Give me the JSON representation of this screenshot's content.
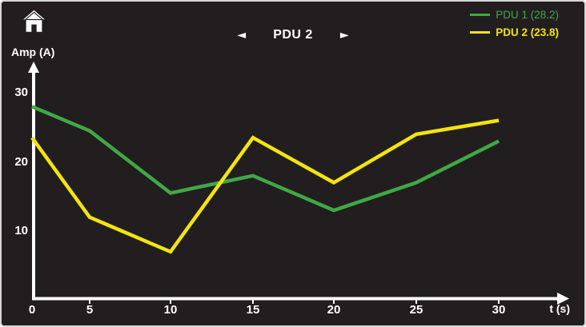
{
  "header": {
    "title": "PDU 2",
    "prev_label": "◄",
    "next_label": "►"
  },
  "axis": {
    "y_label": "Amp (A)",
    "x_label": "t (s)"
  },
  "chart_data": {
    "type": "line",
    "title": "PDU 2",
    "xlabel": "t (s)",
    "ylabel": "Amp (A)",
    "x": [
      0,
      5,
      10,
      15,
      20,
      25,
      30
    ],
    "x_tick_labels": [
      "0",
      "5",
      "10",
      "15",
      "20",
      "25",
      "30"
    ],
    "y_ticks": [
      30,
      20,
      10
    ],
    "y_tick_labels": [
      "30",
      "20",
      "10"
    ],
    "xlim": [
      0,
      33
    ],
    "ylim": [
      0,
      33
    ],
    "grid": false,
    "legend_position": "top-right",
    "background_color": "#221e1f",
    "axis_color": "#ffffff",
    "series": [
      {
        "name": "PDU 1",
        "legend_label": "PDU 1 (28.2)",
        "current_value": 28.2,
        "color": "#3fa845",
        "selected": false,
        "values": [
          28,
          24.5,
          15.5,
          18,
          13,
          17,
          23
        ]
      },
      {
        "name": "PDU 2",
        "legend_label": "PDU 2 (23.8)",
        "current_value": 23.8,
        "color": "#f2e410",
        "selected": true,
        "values": [
          23.5,
          12,
          7,
          23.5,
          17,
          24,
          26
        ]
      }
    ]
  }
}
